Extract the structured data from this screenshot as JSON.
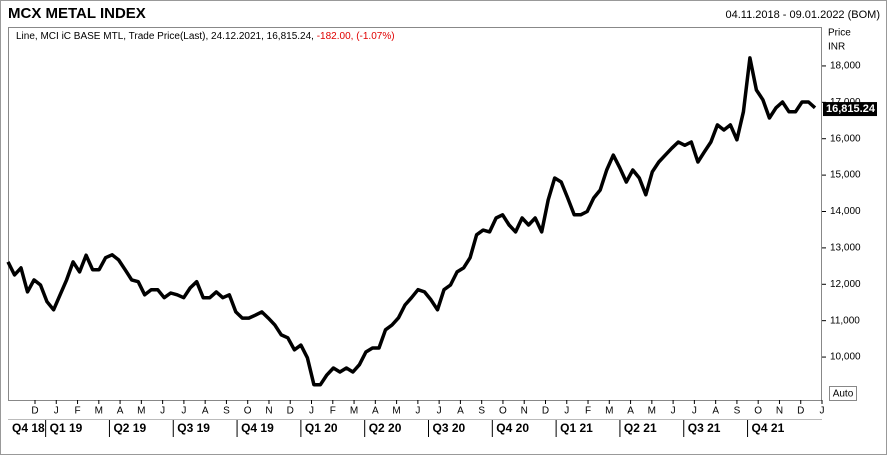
{
  "chart_data": {
    "type": "line",
    "title": "MCX METAL INDEX",
    "date_range": "04.11.2018 - 09.01.2022 (BOM)",
    "subtitle": "Line, MCI iC BASE MTL, Trade Price(Last), 24.12.2021, 16,815.24,",
    "change": "-182.00,",
    "change_pct": "(-1.07%)",
    "axis_label": "Price",
    "axis_unit": "INR",
    "scale_button": "Auto",
    "last_value": 16815.24,
    "last_label": "16,815.24",
    "ylim": [
      8820,
      19070
    ],
    "yticks": [
      {
        "value": 10000,
        "label": "10,000"
      },
      {
        "value": 11000,
        "label": "11,000"
      },
      {
        "value": 12000,
        "label": "12,000"
      },
      {
        "value": 13000,
        "label": "13,000"
      },
      {
        "value": 14000,
        "label": "14,000"
      },
      {
        "value": 15000,
        "label": "15,000"
      },
      {
        "value": 16000,
        "label": "16,000"
      },
      {
        "value": 17000,
        "label": "17,000"
      },
      {
        "value": 18000,
        "label": "18,000"
      }
    ],
    "months": [
      "D",
      "J",
      "F",
      "M",
      "A",
      "M",
      "J",
      "J",
      "A",
      "S",
      "O",
      "N",
      "D",
      "J",
      "F",
      "M",
      "A",
      "M",
      "J",
      "J",
      "A",
      "S",
      "O",
      "N",
      "D",
      "J",
      "F",
      "M",
      "A",
      "M",
      "J",
      "J",
      "A",
      "S",
      "O",
      "N",
      "D",
      "J"
    ],
    "quarters": [
      "Q4 18",
      "Q1 19",
      "Q2 19",
      "Q3 19",
      "Q4 19",
      "Q1 20",
      "Q2 20",
      "Q3 20",
      "Q4 20",
      "Q1 21",
      "Q2 21",
      "Q3 21",
      "Q4 21"
    ],
    "series": [
      {
        "name": "MCI iC BASE MTL",
        "color": "#000000",
        "values": [
          12615,
          12258,
          12450,
          11790,
          12120,
          11980,
          11520,
          11300,
          11710,
          12120,
          12615,
          12340,
          12800,
          12400,
          12400,
          12730,
          12810,
          12670,
          12400,
          12120,
          12070,
          11710,
          11850,
          11850,
          11630,
          11760,
          11710,
          11630,
          11900,
          12070,
          11630,
          11630,
          11790,
          11630,
          11710,
          11240,
          11070,
          11070,
          11150,
          11240,
          11070,
          10885,
          10610,
          10530,
          10200,
          10330,
          9980,
          9240,
          9240,
          9510,
          9700,
          9590,
          9700,
          9590,
          9790,
          10140,
          10250,
          10250,
          10750,
          10880,
          11080,
          11430,
          11630,
          11850,
          11790,
          11570,
          11300,
          11850,
          11980,
          12340,
          12450,
          12730,
          13360,
          13490,
          13440,
          13820,
          13910,
          13630,
          13440,
          13820,
          13630,
          13820,
          13440,
          14320,
          14920,
          14810,
          14370,
          13910,
          13910,
          14000,
          14370,
          14590,
          15140,
          15550,
          15200,
          14810,
          15140,
          14920,
          14460,
          15090,
          15360,
          15550,
          15740,
          15910,
          15820,
          15910,
          15360,
          15640,
          15910,
          16380,
          16240,
          16380,
          15970,
          16740,
          18220,
          17340,
          17070,
          16570,
          16850,
          17010,
          16740,
          16740,
          17010,
          17010,
          16850
        ]
      }
    ]
  }
}
